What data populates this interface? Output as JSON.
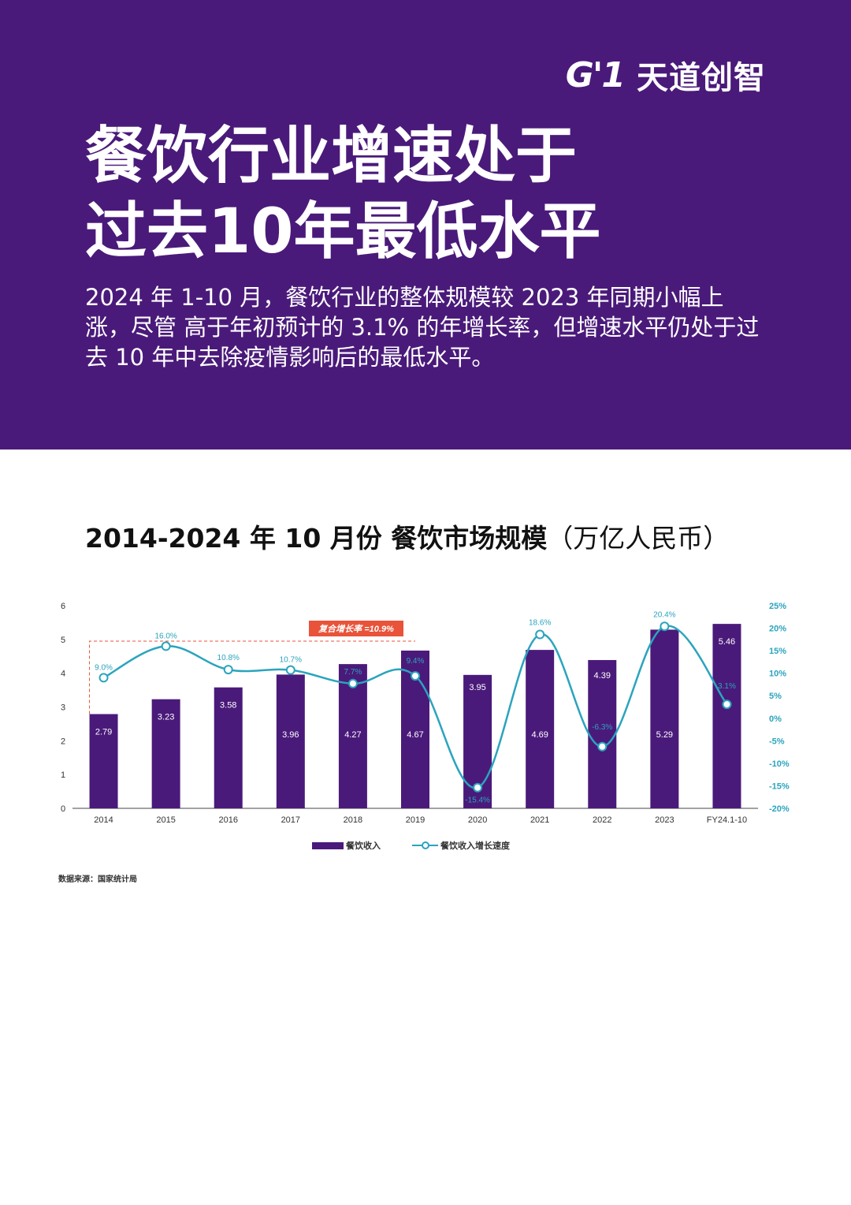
{
  "header": {
    "logo_mark": "G'1",
    "logo_text": "天道创智",
    "title_lines": [
      "餐饮行业增速处于",
      "过去10年最低水平"
    ],
    "intro": "2024 年 1-10 月，餐饮行业的整体规模较 2023 年同期小幅上涨，尽管 高于年初预计的 3.1% 的年增长率，但增速水平仍处于过去 10 年中去除疫情影响后的最低水平。"
  },
  "chart_heading": {
    "strong": "2014-2024 年 10 月份 餐饮市场规模",
    "unit": "（万亿人民币）"
  },
  "source": "数据来源：国家统计局",
  "colors": {
    "header_bg": "#4a1a7a",
    "bar": "#4a1a7a",
    "line": "#2ba4bd",
    "annotation": "#e8533a"
  },
  "chart_data": {
    "type": "bar",
    "categories": [
      "2014",
      "2015",
      "2016",
      "2017",
      "2018",
      "2019",
      "2020",
      "2021",
      "2022",
      "2023",
      "FY24.1-10"
    ],
    "series": [
      {
        "name": "餐饮收入",
        "type": "bar",
        "axis": "left",
        "values": [
          2.79,
          3.23,
          3.58,
          3.96,
          4.27,
          4.67,
          3.95,
          4.69,
          4.39,
          5.29,
          5.46
        ],
        "labels": [
          "2.79",
          "3.23",
          "3.58",
          "3.96",
          "4.27",
          "4.67",
          "3.95",
          "4.69",
          "4.39",
          "5.29",
          "5.46"
        ]
      },
      {
        "name": "餐饮收入增长速度",
        "type": "line",
        "axis": "right",
        "values": [
          9.0,
          16.0,
          10.8,
          10.7,
          7.7,
          9.4,
          -15.4,
          18.6,
          -6.3,
          20.4,
          3.1
        ],
        "labels": [
          "9.0%",
          "16.0%",
          "10.8%",
          "10.7%",
          "7.7%",
          "9.4%",
          "-15.4%",
          "18.6%",
          "-6.3%",
          "20.4%",
          "3.1%"
        ]
      }
    ],
    "y_left": {
      "lim": [
        0,
        6
      ],
      "ticks": [
        "0",
        "1",
        "2",
        "3",
        "4",
        "5",
        "6"
      ]
    },
    "y_right": {
      "lim": [
        -20,
        25
      ],
      "ticks": [
        "-20%",
        "-15%",
        "-10%",
        "-5%",
        "0%",
        "5%",
        "10%",
        "15%",
        "20%",
        "25%"
      ]
    },
    "annotation": {
      "text": "复合增长率 =10.9%",
      "from": "2014",
      "to": "2019"
    },
    "legend_position": "bottom-center",
    "grid": false
  }
}
